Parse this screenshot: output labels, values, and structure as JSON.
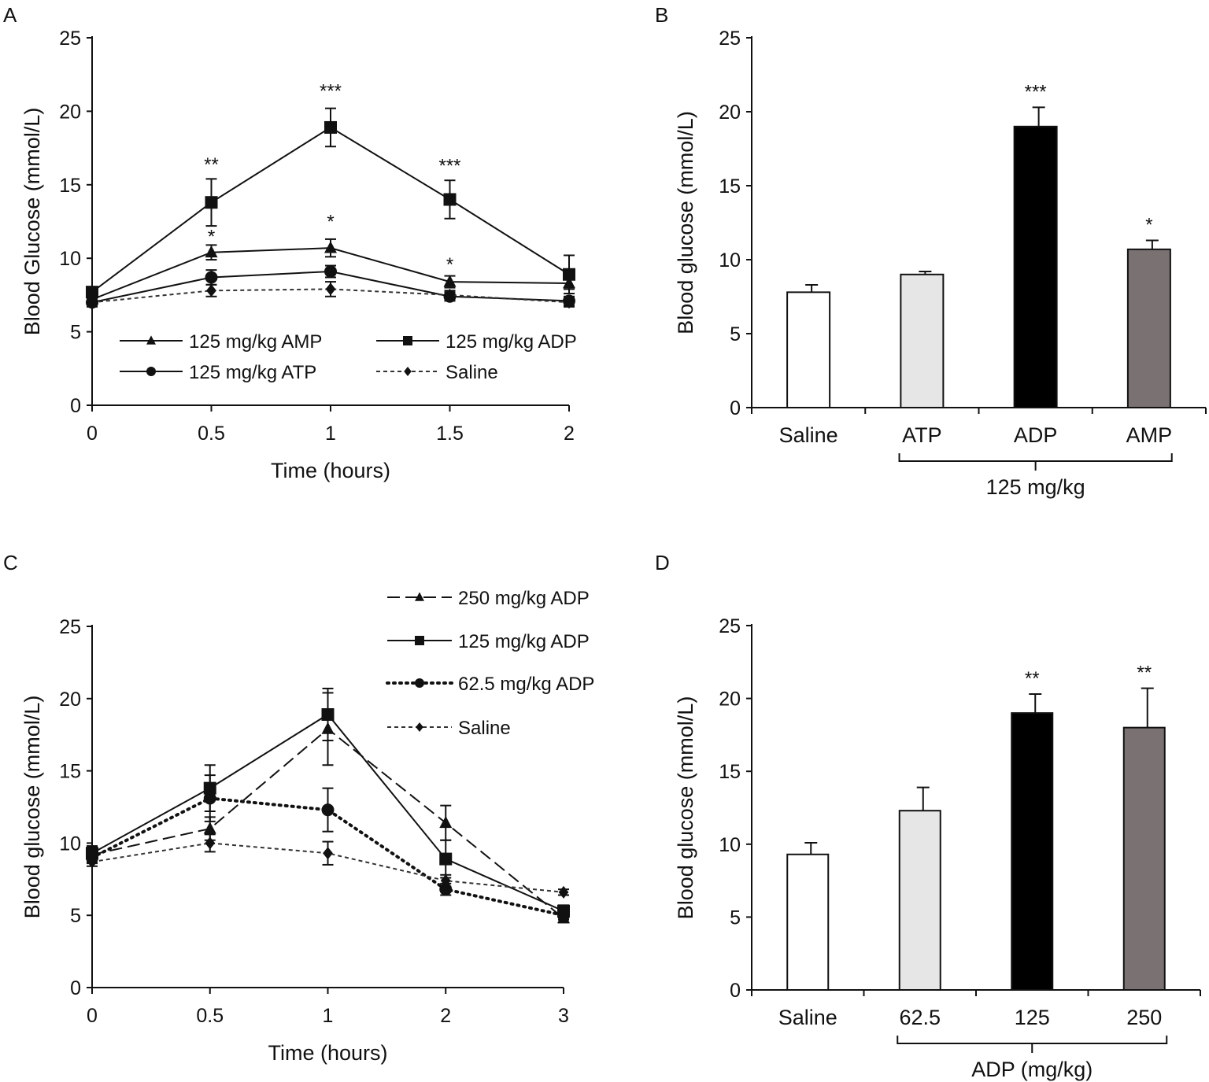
{
  "chart_data": [
    {
      "panel": "A",
      "type": "line",
      "xlabel": "Time (hours)",
      "ylabel": "Blood Glucose (mmol/L)",
      "x": [
        0,
        0.5,
        1,
        1.5,
        2
      ],
      "x_tick_labels": [
        "0",
        "0.5",
        "1",
        "1.5",
        "2"
      ],
      "ylim": [
        0,
        25
      ],
      "y_ticks": [
        0,
        5,
        10,
        15,
        20,
        25
      ],
      "series": [
        {
          "key": "amp",
          "name": "125 mg/kg AMP",
          "marker": "triangle",
          "dash": "solid",
          "color": "#111111",
          "values": [
            7.2,
            10.4,
            10.7,
            8.4,
            8.3
          ],
          "errors": [
            0.3,
            0.5,
            0.6,
            0.4,
            0.4
          ]
        },
        {
          "key": "adp",
          "name": "125 mg/kg ADP",
          "marker": "square",
          "dash": "solid",
          "color": "#111111",
          "values": [
            7.7,
            13.8,
            18.9,
            14.0,
            8.9
          ],
          "errors": [
            0.3,
            1.6,
            1.3,
            1.3,
            1.3
          ]
        },
        {
          "key": "atp",
          "name": "125 mg/kg ATP",
          "marker": "circle",
          "dash": "solid",
          "color": "#111111",
          "values": [
            7.0,
            8.7,
            9.1,
            7.4,
            7.1
          ],
          "errors": [
            0.3,
            0.5,
            0.4,
            0.3,
            0.3
          ]
        },
        {
          "key": "saline",
          "name": "Saline",
          "marker": "diamond",
          "dash": "short",
          "color": "#333333",
          "values": [
            7.0,
            7.8,
            7.9,
            7.5,
            7.0
          ],
          "errors": [
            0.2,
            0.4,
            0.5,
            0.3,
            0.3
          ]
        }
      ],
      "annotations": [
        {
          "label": "**",
          "x": 0.5,
          "y": 16.5
        },
        {
          "label": "*",
          "x": 0.5,
          "y": 11.6
        },
        {
          "label": "***",
          "x": 1,
          "y": 21.5
        },
        {
          "label": "*",
          "x": 1,
          "y": 12.6
        },
        {
          "label": "***",
          "x": 1.5,
          "y": 16.4
        },
        {
          "label": "*",
          "x": 1.5,
          "y": 9.7
        }
      ],
      "legend_order": [
        "amp",
        "adp",
        "atp",
        "saline"
      ],
      "legend_position": "bottom-center"
    },
    {
      "panel": "B",
      "type": "bar",
      "ylabel": "Blood glucose (mmol/L)",
      "ylim": [
        0,
        25
      ],
      "y_ticks": [
        0,
        5,
        10,
        15,
        20,
        25
      ],
      "categories": [
        "Saline",
        "ATP",
        "ADP",
        "AMP"
      ],
      "values": [
        7.8,
        9.0,
        19.0,
        10.7
      ],
      "errors": [
        0.5,
        0.2,
        1.3,
        0.6
      ],
      "bar_colors": [
        "#ffffff",
        "#e6e6e6",
        "#000000",
        "#7a7272"
      ],
      "significance": [
        "",
        "",
        "***",
        "*"
      ],
      "group_label": "125 mg/kg"
    },
    {
      "panel": "C",
      "type": "line",
      "xlabel": "Time (hours)",
      "ylabel": "Blood  glucose (mmol/L)",
      "x": [
        0,
        0.5,
        1,
        2,
        3
      ],
      "x_tick_labels": [
        "0",
        "0.5",
        "1",
        "2",
        "3"
      ],
      "ylim": [
        0,
        25
      ],
      "y_ticks": [
        0,
        5,
        10,
        15,
        20,
        25
      ],
      "series": [
        {
          "key": "adp250",
          "name": "250 mg/kg ADP",
          "marker": "triangle",
          "dash": "long",
          "color": "#111111",
          "values": [
            9.2,
            11.0,
            17.9,
            11.4,
            4.8
          ],
          "errors": [
            0.5,
            0.8,
            2.5,
            1.2,
            0.3
          ]
        },
        {
          "key": "adp125",
          "name": "125 mg/kg ADP",
          "marker": "square",
          "dash": "solid",
          "color": "#111111",
          "values": [
            9.3,
            13.8,
            18.9,
            8.9,
            5.3
          ],
          "errors": [
            0.5,
            1.6,
            1.8,
            1.3,
            0.4
          ]
        },
        {
          "key": "adp62",
          "name": "62.5 mg/kg ADP",
          "marker": "circle",
          "dash": "dot",
          "color": "#111111",
          "values": [
            9.0,
            13.1,
            12.3,
            6.8,
            5.0
          ],
          "errors": [
            0.4,
            1.6,
            1.5,
            0.4,
            0.3
          ]
        },
        {
          "key": "saline",
          "name": "Saline",
          "marker": "diamond",
          "dash": "short",
          "color": "#333333",
          "values": [
            8.7,
            10.0,
            9.3,
            7.4,
            6.6
          ],
          "errors": [
            0.3,
            0.6,
            0.8,
            0.4,
            0.2
          ]
        }
      ],
      "legend_order": [
        "adp250",
        "adp125",
        "adp62",
        "saline"
      ],
      "legend_position": "top-right"
    },
    {
      "panel": "D",
      "type": "bar",
      "ylabel": "Blood glucose (mmol/L)",
      "ylim": [
        0,
        25
      ],
      "y_ticks": [
        0,
        5,
        10,
        15,
        20,
        25
      ],
      "categories": [
        "Saline",
        "62.5",
        "125",
        "250"
      ],
      "values": [
        9.3,
        12.3,
        19.0,
        18.0
      ],
      "errors": [
        0.8,
        1.6,
        1.3,
        2.7
      ],
      "bar_colors": [
        "#ffffff",
        "#e6e6e6",
        "#000000",
        "#7a7272"
      ],
      "significance": [
        "",
        "",
        "**",
        "**"
      ],
      "group_label": "ADP (mg/kg)"
    }
  ]
}
